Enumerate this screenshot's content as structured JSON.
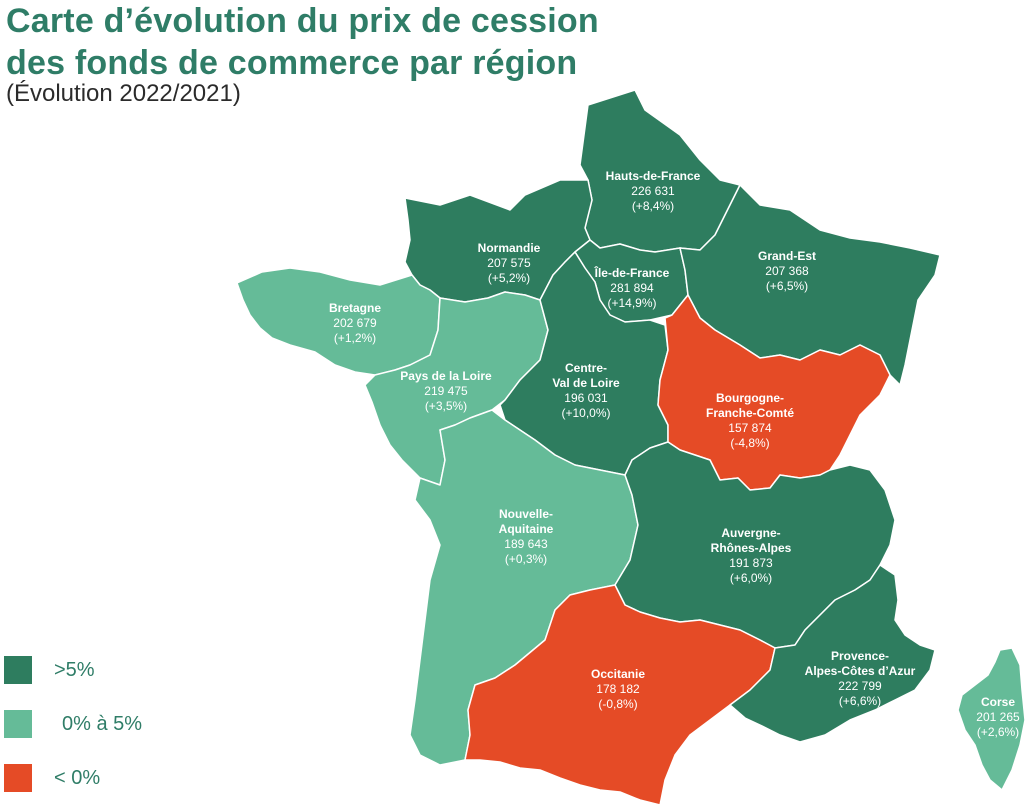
{
  "title_line1": "Carte d’évolution du prix de cession",
  "title_line2": "des fonds de commerce par région",
  "subtitle": "(Évolution 2022/2021)",
  "colors": {
    "high": "#2e7d5f",
    "mid": "#65bb98",
    "neg": "#e54b26",
    "title": "#2f7d67"
  },
  "legend": [
    {
      "label": ">5%",
      "class": "high"
    },
    {
      "label": "0% à 5%",
      "class": "mid"
    },
    {
      "label": "< 0%",
      "class": "neg"
    }
  ],
  "regions": {
    "hauts_de_france": {
      "name": [
        "Hauts-de-France"
      ],
      "price": "226 631",
      "change": "(+8,4%)",
      "class": "high"
    },
    "normandie": {
      "name": [
        "Normandie"
      ],
      "price": "207 575",
      "change": "(+5,2%)",
      "class": "high"
    },
    "ile_de_france": {
      "name": [
        "Île-de-France"
      ],
      "price": "281 894",
      "change": "(+14,9%)",
      "class": "high"
    },
    "grand_est": {
      "name": [
        "Grand-Est"
      ],
      "price": "207 368",
      "change": "(+6,5%)",
      "class": "high"
    },
    "bretagne": {
      "name": [
        "Bretagne"
      ],
      "price": "202 679",
      "change": "(+1,2%)",
      "class": "mid"
    },
    "pays_de_la_loire": {
      "name": [
        "Pays de la Loire"
      ],
      "price": "219 475",
      "change": "(+3,5%)",
      "class": "mid"
    },
    "centre_val_de_loire": {
      "name": [
        "Centre-",
        "Val de Loire"
      ],
      "price": "196 031",
      "change": "(+10,0%)",
      "class": "high"
    },
    "bourgogne_franche_comte": {
      "name": [
        "Bourgogne-",
        "Franche-Comté"
      ],
      "price": "157 874",
      "change": "(-4,8%)",
      "class": "neg"
    },
    "nouvelle_aquitaine": {
      "name": [
        "Nouvelle-",
        "Aquitaine"
      ],
      "price": "189 643",
      "change": "(+0,3%)",
      "class": "mid"
    },
    "auvergne_rhone_alpes": {
      "name": [
        "Auvergne-",
        "Rhônes-Alpes"
      ],
      "price": "191 873",
      "change": "(+6,0%)",
      "class": "high"
    },
    "occitanie": {
      "name": [
        "Occitanie"
      ],
      "price": "178 182",
      "change": "(-0,8%)",
      "class": "neg"
    },
    "paca": {
      "name": [
        "Provence-",
        "Alpes-Côtes d’Azur"
      ],
      "price": "222 799",
      "change": "(+6,6%)",
      "class": "high"
    },
    "corse": {
      "name": [
        "Corse"
      ],
      "price": "201 265",
      "change": "(+2,6%)",
      "class": "mid"
    }
  }
}
